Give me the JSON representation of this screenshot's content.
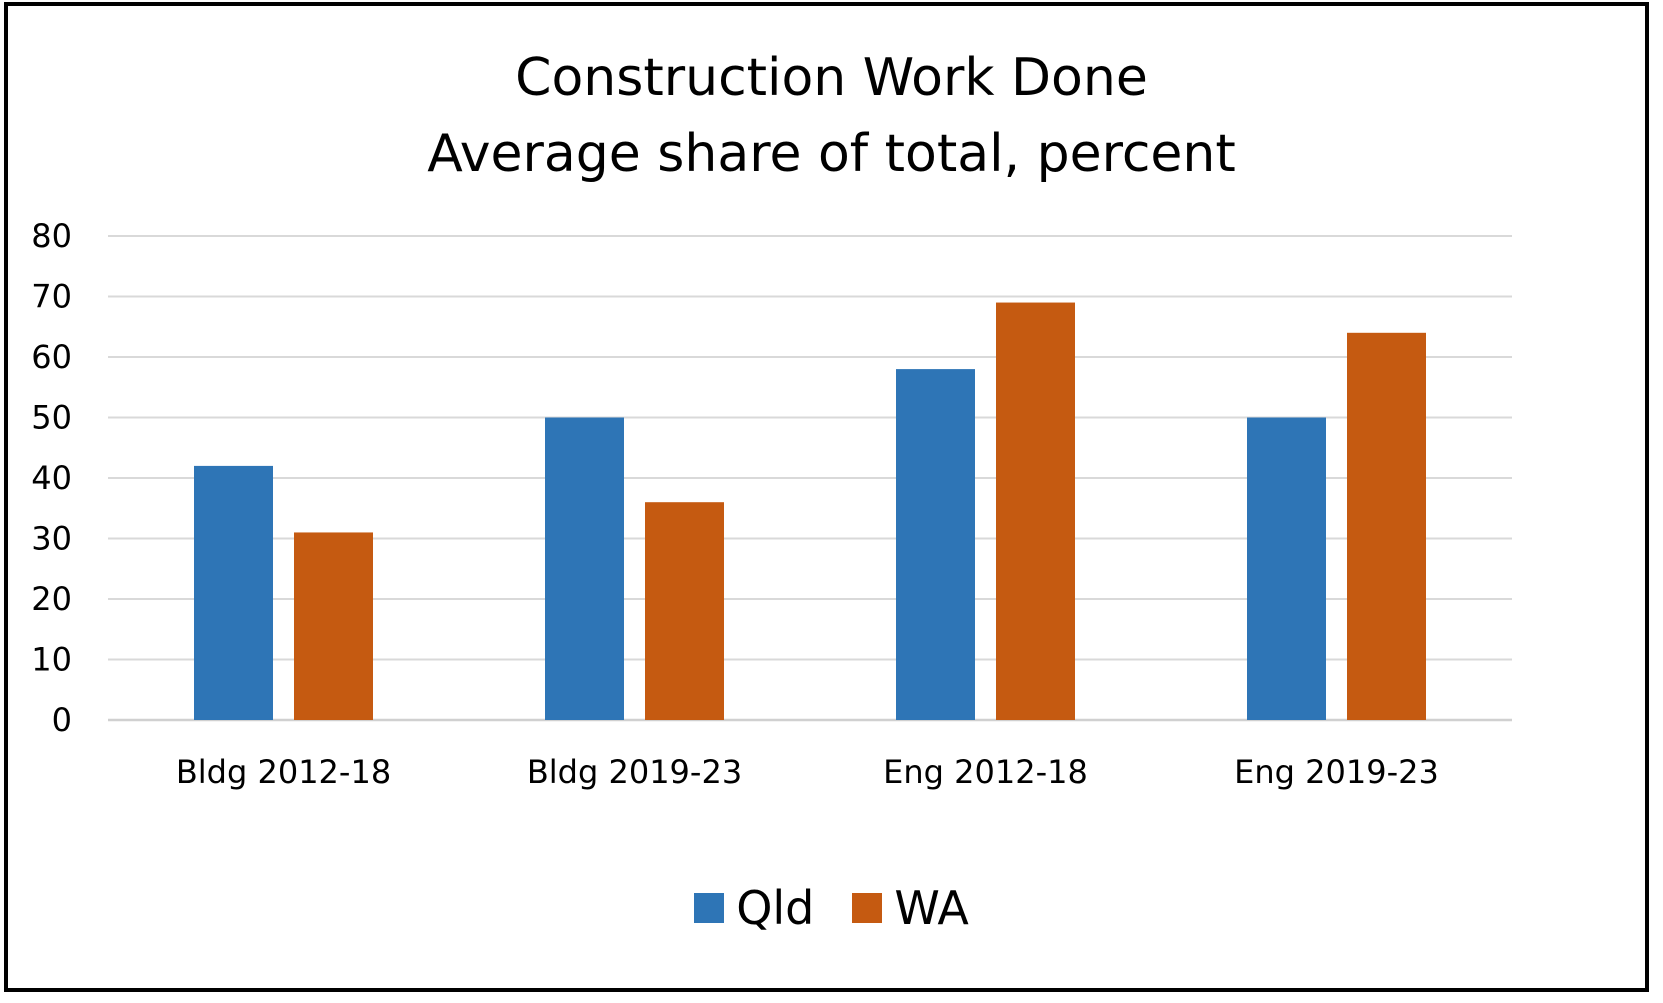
{
  "chart_data": {
    "type": "bar",
    "title": "Construction Work Done",
    "subtitle": "Average share of total, percent",
    "categories": [
      "Bldg 2012-18",
      "Bldg 2019-23",
      "Eng 2012-18",
      "Eng 2019-23"
    ],
    "series": [
      {
        "name": "Qld",
        "color": "#2E75B6",
        "values": [
          42,
          50,
          58,
          50
        ]
      },
      {
        "name": "WA",
        "color": "#C55A11",
        "values": [
          31,
          36,
          69,
          64
        ]
      }
    ],
    "ylim": [
      0,
      80
    ],
    "yticks": [
      "0",
      "10",
      "20",
      "30",
      "40",
      "50",
      "60",
      "70",
      "80"
    ],
    "grid": true,
    "legend_position": "bottom"
  }
}
